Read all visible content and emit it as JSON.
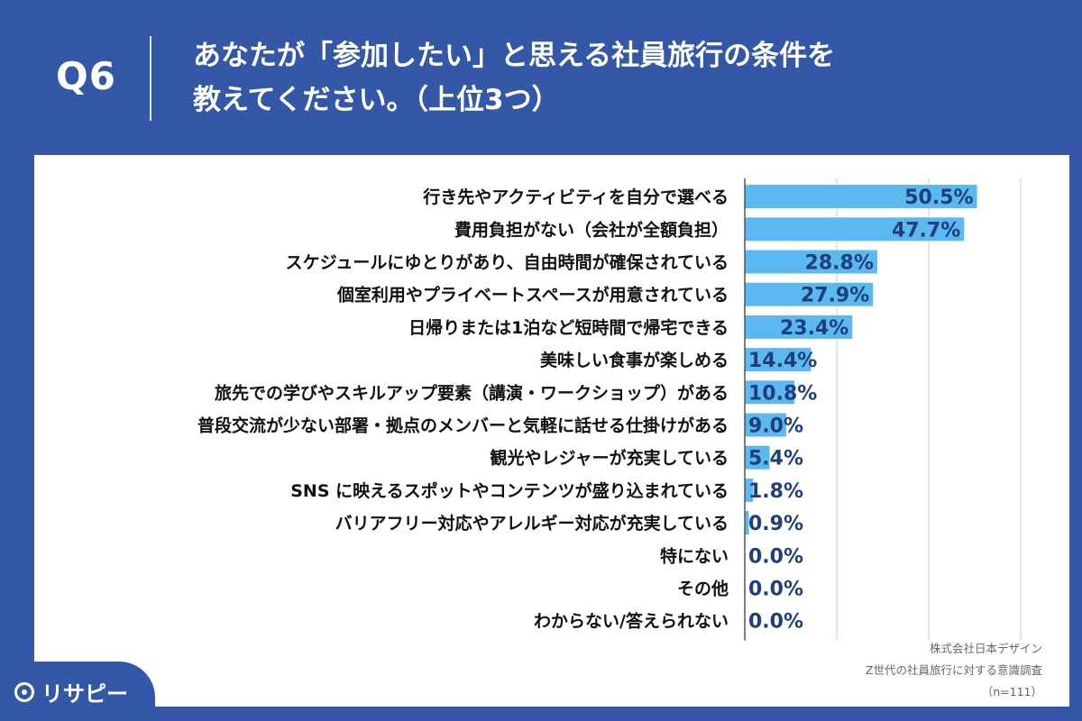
{
  "question_label": "Q6",
  "title_lines": [
    "あなたが「参加したい」と思える社員旅行の条件を",
    "教えてください。（上位3つ）"
  ],
  "source": {
    "company": "株式会社日本デザイン",
    "survey": "Z世代の社員旅行に対する意識調査",
    "sample": "（n=111）"
  },
  "logo_text": "リサピー",
  "colors": {
    "background": "#3457a8",
    "bar": "#5bb8f0",
    "value_text": "#1e3f7a",
    "label_text": "#111111",
    "gridline": "#cccccc"
  },
  "chart_data": {
    "type": "bar",
    "orientation": "horizontal",
    "categories": [
      "行き先やアクティビティを自分で選べる",
      "費用負担がない（会社が全額負担）",
      "スケジュールにゆとりがあり、自由時間が確保されている",
      "個室利用やプライベートスペースが用意されている",
      "日帰りまたは1泊など短時間で帰宅できる",
      "美味しい食事が楽しめる",
      "旅先での学びやスキルアップ要素（講演・ワークショップ）がある",
      "普段交流が少ない部署・拠点のメンバーと気軽に話せる仕掛けがある",
      "観光やレジャーが充実している",
      "SNS に映えるスポットやコンテンツが盛り込まれている",
      "バリアフリー対応やアレルギー対応が充実している",
      "特にない",
      "その他",
      "わからない/答えられない"
    ],
    "values": [
      50.5,
      47.7,
      28.8,
      27.9,
      23.4,
      14.4,
      10.8,
      9.0,
      5.4,
      1.8,
      0.9,
      0.0,
      0.0,
      0.0
    ],
    "value_labels": [
      "50.5%",
      "47.7%",
      "28.8%",
      "27.9%",
      "23.4%",
      "14.4%",
      "10.8%",
      "9.0%",
      "5.4%",
      "1.8%",
      "0.9%",
      "0.0%",
      "0.0%",
      "0.0%"
    ],
    "xlim": [
      0,
      60
    ],
    "grid": true,
    "unit": "%"
  }
}
